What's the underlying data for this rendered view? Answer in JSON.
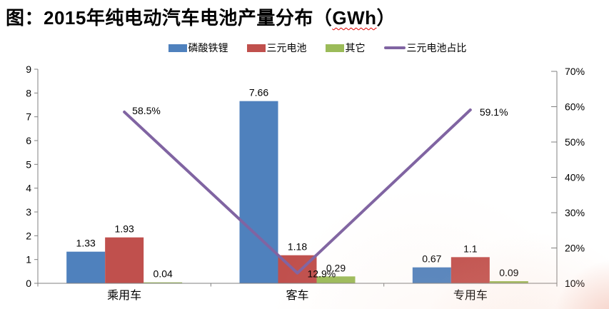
{
  "title": {
    "prefix": "图：2015年纯电动汽车电池产量分布（",
    "highlight": "GWh",
    "suffix": "）"
  },
  "chart_data": {
    "type": "bar",
    "subtype": "grouped bars with secondary-axis line",
    "title": "图：2015年纯电动汽车电池产量分布（GWh）",
    "categories": [
      "乘用车",
      "客车",
      "专用车"
    ],
    "bar_series": [
      {
        "name": "磷酸铁锂",
        "color": "#4F81BD",
        "values": [
          1.33,
          7.66,
          0.67
        ],
        "labels": [
          "1.33",
          "7.66",
          "0.67"
        ]
      },
      {
        "name": "三元电池",
        "color": "#C0504D",
        "values": [
          1.93,
          1.18,
          1.1
        ],
        "labels": [
          "1.93",
          "1.18",
          "1.1"
        ]
      },
      {
        "name": "其它",
        "color": "#9BBB59",
        "values": [
          0.04,
          0.29,
          0.09
        ],
        "labels": [
          "0.04",
          "0.29",
          "0.09"
        ]
      }
    ],
    "line_series": {
      "name": "三元电池占比",
      "color": "#8064A2",
      "values": [
        58.5,
        12.9,
        59.1
      ],
      "labels": [
        "58.5%",
        "12.9%",
        "59.1%"
      ]
    },
    "left_axis": {
      "min": 0,
      "max": 9,
      "step": 1,
      "ticks": [
        "0",
        "1",
        "2",
        "3",
        "4",
        "5",
        "6",
        "7",
        "8",
        "9"
      ]
    },
    "right_axis": {
      "min": 10,
      "max": 70,
      "step": 10,
      "ticks": [
        "10%",
        "20%",
        "30%",
        "40%",
        "50%",
        "60%",
        "70%"
      ]
    },
    "legend_position": "top",
    "grid": false,
    "axis_color": "#808080"
  }
}
